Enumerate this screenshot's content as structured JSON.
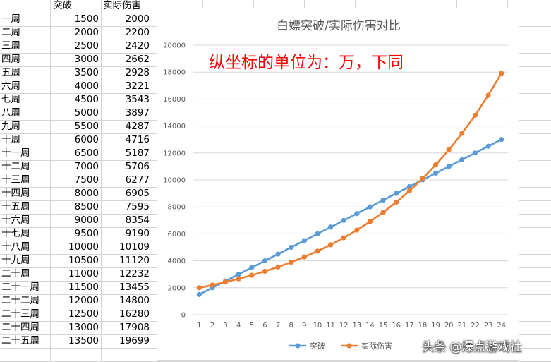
{
  "spreadsheet": {
    "headers": [
      "",
      "突破",
      "实际伤害"
    ],
    "rows": [
      [
        "一周",
        "1500",
        "2000"
      ],
      [
        "二周",
        "2000",
        "2200"
      ],
      [
        "三周",
        "2500",
        "2420"
      ],
      [
        "四周",
        "3000",
        "2662"
      ],
      [
        "五周",
        "3500",
        "2928"
      ],
      [
        "六周",
        "4000",
        "3221"
      ],
      [
        "七周",
        "4500",
        "3543"
      ],
      [
        "八周",
        "5000",
        "3897"
      ],
      [
        "九周",
        "5500",
        "4287"
      ],
      [
        "十周",
        "6000",
        "4716"
      ],
      [
        "十一周",
        "6500",
        "5187"
      ],
      [
        "十二周",
        "7000",
        "5706"
      ],
      [
        "十三周",
        "7500",
        "6277"
      ],
      [
        "十四周",
        "8000",
        "6905"
      ],
      [
        "十五周",
        "8500",
        "7595"
      ],
      [
        "十六周",
        "9000",
        "8354"
      ],
      [
        "十七周",
        "9500",
        "9190"
      ],
      [
        "十八周",
        "10000",
        "10109"
      ],
      [
        "十九周",
        "10500",
        "11120"
      ],
      [
        "二十周",
        "11000",
        "12232"
      ],
      [
        "二十一周",
        "11500",
        "13455"
      ],
      [
        "二十二周",
        "12000",
        "14800"
      ],
      [
        "二十三周",
        "12500",
        "16280"
      ],
      [
        "二十四周",
        "13000",
        "17908"
      ],
      [
        "二十五周",
        "13500",
        "19699"
      ]
    ]
  },
  "annotation": "纵坐标的单位为：万，下同",
  "watermark": "头条 @爆点游戏社",
  "chart_data": {
    "type": "line",
    "title": "白嫖突破/实际伤害对比",
    "xlabel": "",
    "ylabel": "",
    "x": [
      1,
      2,
      3,
      4,
      5,
      6,
      7,
      8,
      9,
      10,
      11,
      12,
      13,
      14,
      15,
      16,
      17,
      18,
      19,
      20,
      21,
      22,
      23,
      24
    ],
    "ylim": [
      0,
      20000
    ],
    "yticks": [
      0,
      2000,
      4000,
      6000,
      8000,
      10000,
      12000,
      14000,
      16000,
      18000,
      20000
    ],
    "grid": true,
    "legend": "bottom",
    "series": [
      {
        "name": "突破",
        "color": "#5b9bd5",
        "values": [
          1500,
          2000,
          2500,
          3000,
          3500,
          4000,
          4500,
          5000,
          5500,
          6000,
          6500,
          7000,
          7500,
          8000,
          8500,
          9000,
          9500,
          10000,
          10500,
          11000,
          11500,
          12000,
          12500,
          13000
        ]
      },
      {
        "name": "实际伤害",
        "color": "#ed7d31",
        "values": [
          2000,
          2200,
          2420,
          2662,
          2928,
          3221,
          3543,
          3897,
          4287,
          4716,
          5187,
          5706,
          6277,
          6905,
          7595,
          8354,
          9190,
          10109,
          11120,
          12232,
          13455,
          14800,
          16280,
          17908
        ]
      }
    ]
  }
}
